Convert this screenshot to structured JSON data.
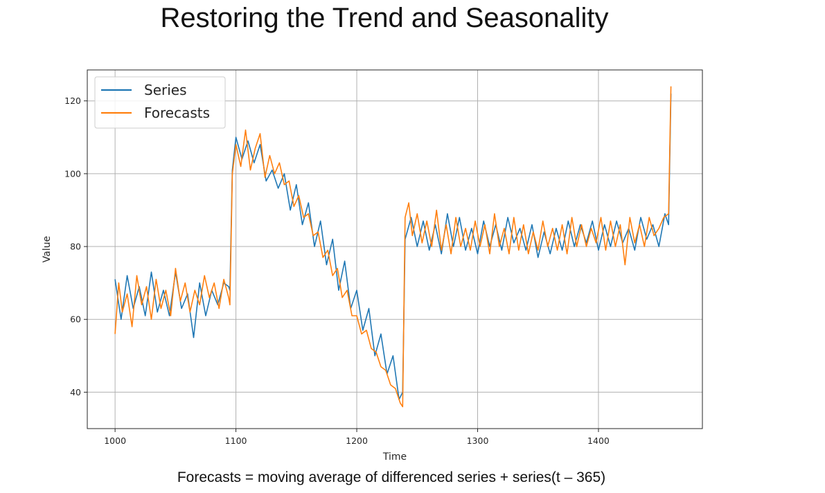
{
  "slide": {
    "title": "Restoring the Trend and Seasonality",
    "caption": "Forecasts = moving average of differenced series + series(t – 365)"
  },
  "chart_data": {
    "type": "line",
    "title": "",
    "xlabel": "Time",
    "ylabel": "Value",
    "xlim": [
      977,
      1486
    ],
    "ylim": [
      30,
      128.5
    ],
    "xticks": [
      1000,
      1100,
      1200,
      1300,
      1400
    ],
    "yticks": [
      40,
      60,
      80,
      100,
      120
    ],
    "grid": true,
    "legend": "top-left",
    "series": [
      {
        "name": "Series",
        "color": "#1f77b4",
        "x": [
          1000,
          1005,
          1010,
          1015,
          1020,
          1025,
          1030,
          1035,
          1040,
          1045,
          1050,
          1055,
          1060,
          1065,
          1070,
          1075,
          1080,
          1085,
          1090,
          1094,
          1095,
          1097,
          1100,
          1105,
          1110,
          1115,
          1120,
          1125,
          1130,
          1135,
          1140,
          1145,
          1150,
          1155,
          1160,
          1165,
          1170,
          1175,
          1180,
          1185,
          1190,
          1195,
          1200,
          1205,
          1210,
          1215,
          1220,
          1225,
          1230,
          1235,
          1238,
          1240,
          1245,
          1250,
          1255,
          1260,
          1265,
          1270,
          1275,
          1280,
          1285,
          1290,
          1295,
          1300,
          1305,
          1310,
          1315,
          1320,
          1325,
          1330,
          1335,
          1340,
          1345,
          1350,
          1355,
          1360,
          1365,
          1370,
          1375,
          1380,
          1385,
          1390,
          1395,
          1400,
          1405,
          1410,
          1415,
          1420,
          1425,
          1430,
          1435,
          1440,
          1445,
          1450,
          1455,
          1458,
          1460
        ],
        "values": [
          71,
          60,
          72,
          63,
          69,
          61,
          73,
          62,
          68,
          61,
          73,
          63,
          67,
          55,
          70,
          61,
          68,
          64,
          70,
          69,
          68,
          101,
          110,
          104,
          109,
          103,
          108,
          98,
          101,
          96,
          100,
          90,
          97,
          86,
          92,
          80,
          87,
          75,
          82,
          68,
          76,
          63,
          68,
          57,
          63,
          50,
          56,
          45,
          50,
          38,
          40,
          82,
          88,
          80,
          87,
          79,
          86,
          78,
          89,
          80,
          88,
          79,
          85,
          78,
          87,
          80,
          86,
          79,
          88,
          81,
          85,
          79,
          86,
          77,
          84,
          78,
          85,
          79,
          87,
          80,
          86,
          81,
          87,
          79,
          86,
          80,
          87,
          81,
          85,
          79,
          88,
          82,
          86,
          80,
          89,
          86,
          122
        ]
      },
      {
        "name": "Forecasts",
        "color": "#ff7f0e",
        "x": [
          1000,
          1003,
          1006,
          1010,
          1014,
          1018,
          1022,
          1026,
          1030,
          1034,
          1038,
          1042,
          1046,
          1050,
          1054,
          1058,
          1062,
          1066,
          1070,
          1074,
          1078,
          1082,
          1086,
          1090,
          1094,
          1095,
          1097,
          1100,
          1104,
          1108,
          1112,
          1116,
          1120,
          1124,
          1128,
          1132,
          1136,
          1140,
          1144,
          1148,
          1152,
          1156,
          1160,
          1164,
          1168,
          1172,
          1176,
          1180,
          1184,
          1188,
          1192,
          1196,
          1200,
          1204,
          1208,
          1212,
          1216,
          1220,
          1224,
          1228,
          1232,
          1236,
          1238,
          1240,
          1243,
          1246,
          1250,
          1254,
          1258,
          1262,
          1266,
          1270,
          1274,
          1278,
          1282,
          1286,
          1290,
          1294,
          1298,
          1302,
          1306,
          1310,
          1314,
          1318,
          1322,
          1326,
          1330,
          1334,
          1338,
          1342,
          1346,
          1350,
          1354,
          1358,
          1362,
          1366,
          1370,
          1374,
          1378,
          1382,
          1386,
          1390,
          1394,
          1398,
          1402,
          1406,
          1410,
          1414,
          1418,
          1422,
          1426,
          1430,
          1434,
          1438,
          1442,
          1446,
          1450,
          1454,
          1458,
          1460
        ],
        "values": [
          56,
          70,
          62,
          67,
          58,
          72,
          64,
          69,
          60,
          71,
          63,
          68,
          61,
          74,
          65,
          70,
          62,
          68,
          64,
          72,
          66,
          70,
          63,
          71,
          66,
          64,
          100,
          108,
          102,
          112,
          101,
          107,
          111,
          99,
          105,
          100,
          103,
          97,
          98,
          91,
          94,
          88,
          89,
          83,
          84,
          77,
          79,
          72,
          74,
          66,
          68,
          61,
          61,
          56,
          57,
          52,
          51,
          47,
          46,
          42,
          41,
          37,
          36,
          88,
          92,
          83,
          89,
          81,
          87,
          80,
          90,
          79,
          86,
          78,
          88,
          80,
          85,
          79,
          87,
          80,
          86,
          78,
          89,
          80,
          85,
          78,
          88,
          79,
          86,
          78,
          84,
          79,
          87,
          80,
          85,
          79,
          86,
          78,
          88,
          80,
          86,
          80,
          85,
          81,
          88,
          79,
          87,
          80,
          86,
          75,
          88,
          81,
          86,
          80,
          88,
          83,
          85,
          88,
          89,
          124
        ]
      }
    ]
  }
}
